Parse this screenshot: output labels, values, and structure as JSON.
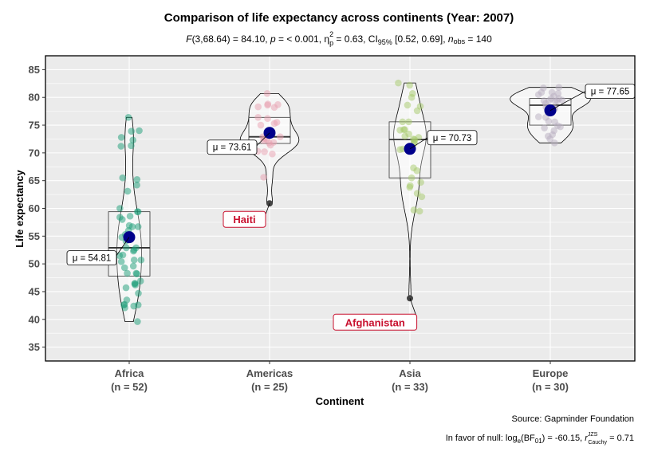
{
  "chart_data": {
    "type": "violin",
    "title": "Comparison of life expectancy across continents (Year: 2007)",
    "subtitle": {
      "F": "F",
      "F_rest": "(3,68.64) = 84.10, ",
      "p": "p",
      "p_rest": " = < 0.001, ",
      "eta": "η",
      "eta_sup": "2",
      "eta_sub": "p",
      "eta_rest": " = 0.63, CI",
      "ci_sub": "95%",
      "ci_rest": " [0.52, 0.69], ",
      "n": "n",
      "n_sub": "obs",
      "n_rest": " = 140"
    },
    "xlabel": "Continent",
    "ylabel": "Life expectancy",
    "ylim": [
      32.5,
      87.5
    ],
    "yticks": [
      35,
      40,
      45,
      50,
      55,
      60,
      65,
      70,
      75,
      80,
      85
    ],
    "categories": [
      "Africa",
      "Americas",
      "Asia",
      "Europe"
    ],
    "counts": [
      "(n = 52)",
      "(n = 25)",
      "(n = 33)",
      "(n = 30)"
    ],
    "colors": [
      "#1B9E77",
      "#E7A0B0",
      "#A6C96A",
      "#B7AEC0"
    ],
    "means": [
      54.81,
      73.61,
      70.73,
      77.65
    ],
    "mean_labels": [
      "μ = 54.81",
      "μ = 73.61",
      "μ = 70.73",
      "μ = 77.65"
    ],
    "boxes": [
      {
        "q1": 47.8,
        "median": 52.9,
        "q3": 59.4
      },
      {
        "q1": 71.7,
        "median": 72.9,
        "q3": 76.4
      },
      {
        "q1": 65.5,
        "median": 72.4,
        "q3": 75.6
      },
      {
        "q1": 75.0,
        "median": 78.6,
        "q3": 79.8
      }
    ],
    "values": [
      [
        72.3,
        42.7,
        56.7,
        50.7,
        52.3,
        49.6,
        50.4,
        44.7,
        50.7,
        65.2,
        46.5,
        55.3,
        48.3,
        54.8,
        71.3,
        51.6,
        58.0,
        52.9,
        56.7,
        59.4,
        60.0,
        56.0,
        46.4,
        54.1,
        42.6,
        45.7,
        74.0,
        59.4,
        48.3,
        54.5,
        64.2,
        72.8,
        71.2,
        42.1,
        52.9,
        56.9,
        46.9,
        76.4,
        46.2,
        65.5,
        63.1,
        42.6,
        48.2,
        49.3,
        58.6,
        39.6,
        52.5,
        58.4,
        73.9,
        51.5,
        42.4,
        43.5
      ],
      [
        75.3,
        65.6,
        72.4,
        80.7,
        78.6,
        72.9,
        78.8,
        78.3,
        72.2,
        75.0,
        71.9,
        70.3,
        60.9,
        70.2,
        72.6,
        76.2,
        72.9,
        75.5,
        71.8,
        71.4,
        78.7,
        69.8,
        78.2,
        76.4,
        73.7
      ],
      [
        43.8,
        75.6,
        64.1,
        59.7,
        73.0,
        82.2,
        64.7,
        70.7,
        71.0,
        59.5,
        80.7,
        82.6,
        72.5,
        67.3,
        78.6,
        77.6,
        72.0,
        74.2,
        66.8,
        62.1,
        63.8,
        75.6,
        65.5,
        71.7,
        72.8,
        80.0,
        72.4,
        74.1,
        78.4,
        70.6,
        74.2,
        73.4,
        62.7
      ],
      [
        76.4,
        79.8,
        79.4,
        74.9,
        73.0,
        75.7,
        76.5,
        78.3,
        79.3,
        80.7,
        79.4,
        79.5,
        73.3,
        81.8,
        78.9,
        80.5,
        74.5,
        79.8,
        80.2,
        75.6,
        78.1,
        72.5,
        74.0,
        74.7,
        77.9,
        80.9,
        80.9,
        81.7,
        71.8,
        79.4
      ]
    ],
    "outliers": [
      {
        "category": "Americas",
        "label": "Haiti",
        "value": 60.9
      },
      {
        "category": "Asia",
        "label": "Afghanistan",
        "value": 43.8
      }
    ],
    "caption_source": "Source: Gapminder Foundation",
    "caption_bf": {
      "a": "In favor of null: log",
      "a_sub": "e",
      "b": "(BF",
      "b_sub": "01",
      "c": ") = -60.15, ",
      "r": "r",
      "r_sup": "JZS",
      "r_sub": "Cauchy",
      "d": " = 0.71"
    }
  }
}
